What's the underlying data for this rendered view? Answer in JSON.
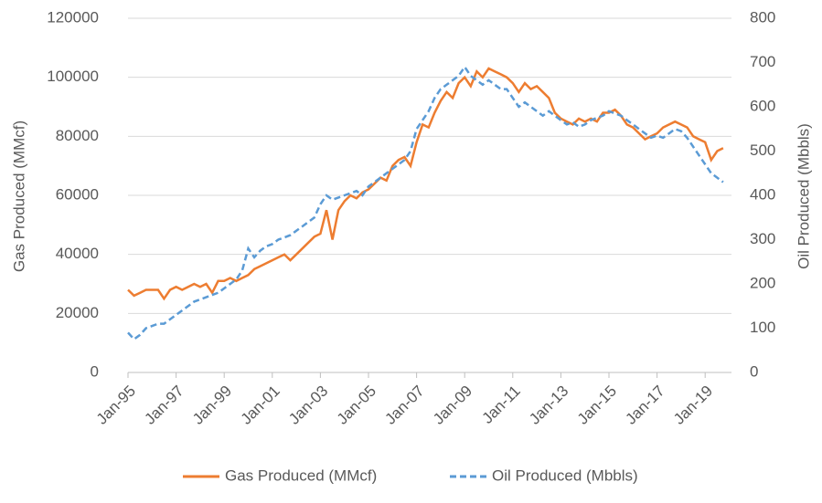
{
  "chart_data": {
    "type": "line",
    "x": [
      "Jan-95",
      "Apr-95",
      "Jul-95",
      "Oct-95",
      "Jan-96",
      "Apr-96",
      "Jul-96",
      "Oct-96",
      "Jan-97",
      "Apr-97",
      "Jul-97",
      "Oct-97",
      "Jan-98",
      "Apr-98",
      "Jul-98",
      "Oct-98",
      "Jan-99",
      "Apr-99",
      "Jul-99",
      "Oct-99",
      "Jan-00",
      "Apr-00",
      "Jul-00",
      "Oct-00",
      "Jan-01",
      "Apr-01",
      "Jul-01",
      "Oct-01",
      "Jan-02",
      "Apr-02",
      "Jul-02",
      "Oct-02",
      "Jan-03",
      "Apr-03",
      "Jul-03",
      "Oct-03",
      "Jan-04",
      "Apr-04",
      "Jul-04",
      "Oct-04",
      "Jan-05",
      "Apr-05",
      "Jul-05",
      "Oct-05",
      "Jan-06",
      "Apr-06",
      "Jul-06",
      "Oct-06",
      "Jan-07",
      "Apr-07",
      "Jul-07",
      "Oct-07",
      "Jan-08",
      "Apr-08",
      "Jul-08",
      "Oct-08",
      "Jan-09",
      "Apr-09",
      "Jul-09",
      "Oct-09",
      "Jan-10",
      "Apr-10",
      "Jul-10",
      "Oct-10",
      "Jan-11",
      "Apr-11",
      "Jul-11",
      "Oct-11",
      "Jan-12",
      "Apr-12",
      "Jul-12",
      "Oct-12",
      "Jan-13",
      "Apr-13",
      "Jul-13",
      "Oct-13",
      "Jan-14",
      "Apr-14",
      "Jul-14",
      "Oct-14",
      "Jan-15",
      "Apr-15",
      "Jul-15",
      "Oct-15",
      "Jan-16",
      "Apr-16",
      "Jul-16",
      "Oct-16",
      "Jan-17",
      "Apr-17",
      "Jul-17",
      "Oct-17",
      "Jan-18",
      "Apr-18",
      "Jul-18",
      "Oct-18",
      "Jan-19",
      "Apr-19",
      "Jul-19",
      "Oct-19"
    ],
    "xticks": [
      "Jan-95",
      "Jan-97",
      "Jan-99",
      "Jan-01",
      "Jan-03",
      "Jan-05",
      "Jan-07",
      "Jan-09",
      "Jan-11",
      "Jan-13",
      "Jan-15",
      "Jan-17",
      "Jan-19"
    ],
    "ylabel": "Gas Produced (MMcf)",
    "y2label": "Oil Produced (Mbbls)",
    "ylim": [
      0,
      120000
    ],
    "yticks": [
      0,
      20000,
      40000,
      60000,
      80000,
      100000,
      120000
    ],
    "y2lim": [
      0,
      800
    ],
    "y2ticks": [
      0,
      100,
      200,
      300,
      400,
      500,
      600,
      700,
      800
    ],
    "grid": true,
    "legend": "bottom",
    "series": [
      {
        "name": "Gas Produced (MMcf)",
        "color": "#ed7d31",
        "dashed": false,
        "axis": "y",
        "values": [
          28000,
          26000,
          27000,
          28000,
          28000,
          28000,
          25000,
          28000,
          29000,
          28000,
          29000,
          30000,
          29000,
          30000,
          27000,
          31000,
          31000,
          32000,
          31000,
          32000,
          33000,
          35000,
          36000,
          37000,
          38000,
          39000,
          40000,
          38000,
          40000,
          42000,
          44000,
          46000,
          47000,
          55000,
          45000,
          55000,
          58000,
          60000,
          59000,
          61000,
          62000,
          64000,
          66000,
          65000,
          70000,
          72000,
          73000,
          70000,
          78000,
          84000,
          83000,
          88000,
          92000,
          95000,
          93000,
          98000,
          100000,
          97000,
          102000,
          100000,
          103000,
          102000,
          101000,
          100000,
          98000,
          95000,
          98000,
          96000,
          97000,
          95000,
          93000,
          88000,
          86000,
          85000,
          84000,
          86000,
          85000,
          86000,
          85000,
          88000,
          88000,
          89000,
          87000,
          84000,
          83000,
          81000,
          79000,
          80000,
          81000,
          83000,
          84000,
          85000,
          84000,
          83000,
          80000,
          79000,
          78000,
          72000,
          75000,
          76000
        ]
      },
      {
        "name": "Oil Produced (Mbbls)",
        "color": "#5b9bd5",
        "dashed": true,
        "axis": "y2",
        "values": [
          90,
          75,
          85,
          100,
          105,
          110,
          110,
          120,
          130,
          140,
          150,
          160,
          165,
          170,
          175,
          180,
          190,
          200,
          210,
          230,
          280,
          260,
          275,
          285,
          290,
          300,
          305,
          310,
          320,
          330,
          340,
          350,
          380,
          400,
          390,
          395,
          400,
          405,
          410,
          400,
          420,
          430,
          440,
          450,
          460,
          470,
          480,
          500,
          550,
          570,
          590,
          620,
          640,
          650,
          660,
          670,
          690,
          670,
          660,
          650,
          660,
          650,
          640,
          640,
          620,
          600,
          610,
          600,
          590,
          580,
          590,
          580,
          570,
          560,
          565,
          555,
          560,
          570,
          575,
          580,
          590,
          585,
          580,
          570,
          560,
          550,
          540,
          530,
          535,
          530,
          540,
          550,
          545,
          530,
          510,
          490,
          470,
          450,
          440,
          430
        ]
      }
    ]
  }
}
